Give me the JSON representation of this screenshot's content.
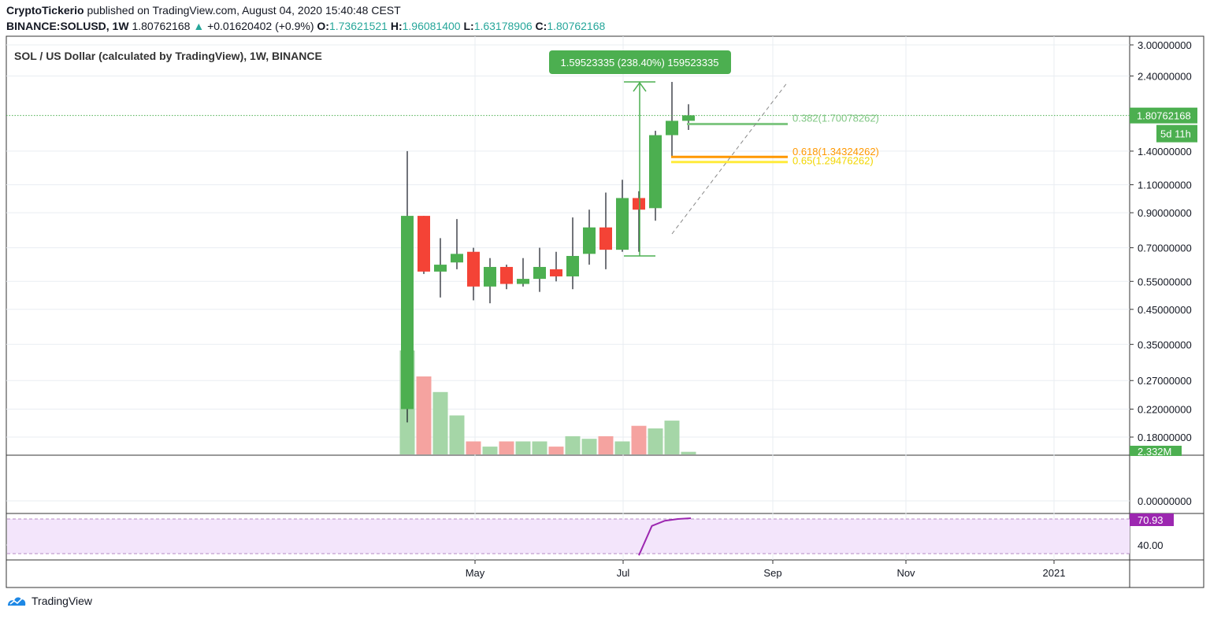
{
  "header": {
    "author": "CryptoTickerio",
    "published": "published on TradingView.com, August 04, 2020 15:40:48 CEST",
    "symbol": "BINANCE:SOLUSD, 1W",
    "last": "1.80762168",
    "change": "+0.01620402 (+0.9%)",
    "o_label": "O:",
    "o": "1.73621521",
    "h_label": "H:",
    "h": "1.96081400",
    "l_label": "L:",
    "l": "1.63178906",
    "c_label": "C:",
    "c": "1.80762168"
  },
  "pane_title": "SOL / US Dollar (calculated by TradingView), 1W, BINANCE",
  "footer": {
    "brand": "TradingView"
  },
  "colors": {
    "up": "#4caf50",
    "down": "#f44336",
    "up_vol": "#a5d6a7",
    "down_vol": "#f5a3a0",
    "rsi": "#9c27b0",
    "rsi_band": "#f3e5fb",
    "fib382": "#81c784",
    "fib618": "#ff9800",
    "fib65": "#ffeb3b"
  },
  "chart_data": {
    "type": "candlestick",
    "scale": "log",
    "y_range": [
      0.16,
      3.0
    ],
    "price_ticks": [
      "3.00000000",
      "2.40000000",
      "1.40000000",
      "1.10000000",
      "0.90000000",
      "0.70000000",
      "0.55000000",
      "0.45000000",
      "0.35000000",
      "0.27000000",
      "0.22000000",
      "0.18000000"
    ],
    "price_tick_values": [
      3.0,
      2.4,
      1.4,
      1.1,
      0.9,
      0.7,
      0.55,
      0.45,
      0.35,
      0.27,
      0.22,
      0.18
    ],
    "time_labels": [
      "May",
      "Jul",
      "Sep",
      "Nov",
      "2021"
    ],
    "candles": [
      {
        "o": 0.22,
        "h": 1.4,
        "l": 0.2,
        "c": 0.88
      },
      {
        "o": 0.88,
        "h": 0.88,
        "l": 0.58,
        "c": 0.59
      },
      {
        "o": 0.59,
        "h": 0.75,
        "l": 0.49,
        "c": 0.62
      },
      {
        "o": 0.63,
        "h": 0.86,
        "l": 0.6,
        "c": 0.67
      },
      {
        "o": 0.68,
        "h": 0.7,
        "l": 0.48,
        "c": 0.53
      },
      {
        "o": 0.53,
        "h": 0.65,
        "l": 0.47,
        "c": 0.61
      },
      {
        "o": 0.61,
        "h": 0.62,
        "l": 0.52,
        "c": 0.54
      },
      {
        "o": 0.54,
        "h": 0.65,
        "l": 0.53,
        "c": 0.56
      },
      {
        "o": 0.56,
        "h": 0.7,
        "l": 0.51,
        "c": 0.61
      },
      {
        "o": 0.6,
        "h": 0.68,
        "l": 0.55,
        "c": 0.57
      },
      {
        "o": 0.57,
        "h": 0.87,
        "l": 0.52,
        "c": 0.66
      },
      {
        "o": 0.67,
        "h": 0.92,
        "l": 0.62,
        "c": 0.81
      },
      {
        "o": 0.81,
        "h": 1.04,
        "l": 0.6,
        "c": 0.69
      },
      {
        "o": 0.69,
        "h": 1.14,
        "l": 0.68,
        "c": 1.0
      },
      {
        "o": 1.0,
        "h": 1.05,
        "l": 0.68,
        "c": 0.92
      },
      {
        "o": 0.93,
        "h": 1.62,
        "l": 0.85,
        "c": 1.57
      },
      {
        "o": 1.57,
        "h": 2.3,
        "l": 1.34,
        "c": 1.74
      },
      {
        "o": 1.74,
        "h": 1.96,
        "l": 1.63,
        "c": 1.81
      }
    ],
    "volume": [
      {
        "v": 0.4,
        "d": "up"
      },
      {
        "v": 0.3,
        "d": "down"
      },
      {
        "v": 0.24,
        "d": "up"
      },
      {
        "v": 0.15,
        "d": "up"
      },
      {
        "v": 0.05,
        "d": "down"
      },
      {
        "v": 0.03,
        "d": "up"
      },
      {
        "v": 0.05,
        "d": "down"
      },
      {
        "v": 0.05,
        "d": "up"
      },
      {
        "v": 0.05,
        "d": "up"
      },
      {
        "v": 0.03,
        "d": "down"
      },
      {
        "v": 0.07,
        "d": "up"
      },
      {
        "v": 0.06,
        "d": "up"
      },
      {
        "v": 0.07,
        "d": "down"
      },
      {
        "v": 0.05,
        "d": "up"
      },
      {
        "v": 0.11,
        "d": "down"
      },
      {
        "v": 0.1,
        "d": "up"
      },
      {
        "v": 0.13,
        "d": "up"
      },
      {
        "v": 0.01,
        "d": "up"
      }
    ],
    "last_price_label": "1.80762168",
    "countdown": "5d 11h",
    "volume_label": "2.332M",
    "measure_label": "1.59523335 (238.40%) 159523335",
    "measure": {
      "from": 0.66,
      "to": 2.3
    },
    "fibs": [
      {
        "label": "0.382(1.70078262)",
        "price": 1.70078262
      },
      {
        "label": "0.618(1.34324262)",
        "price": 1.34324262
      },
      {
        "label": "0.65(1.29476262)",
        "price": 1.29476262
      }
    ],
    "indicator_tick": "0.00000000",
    "rsi_last": "70.93",
    "rsi_tick": "40.00",
    "rsi": [
      48,
      62,
      68,
      70,
      70.93
    ]
  }
}
